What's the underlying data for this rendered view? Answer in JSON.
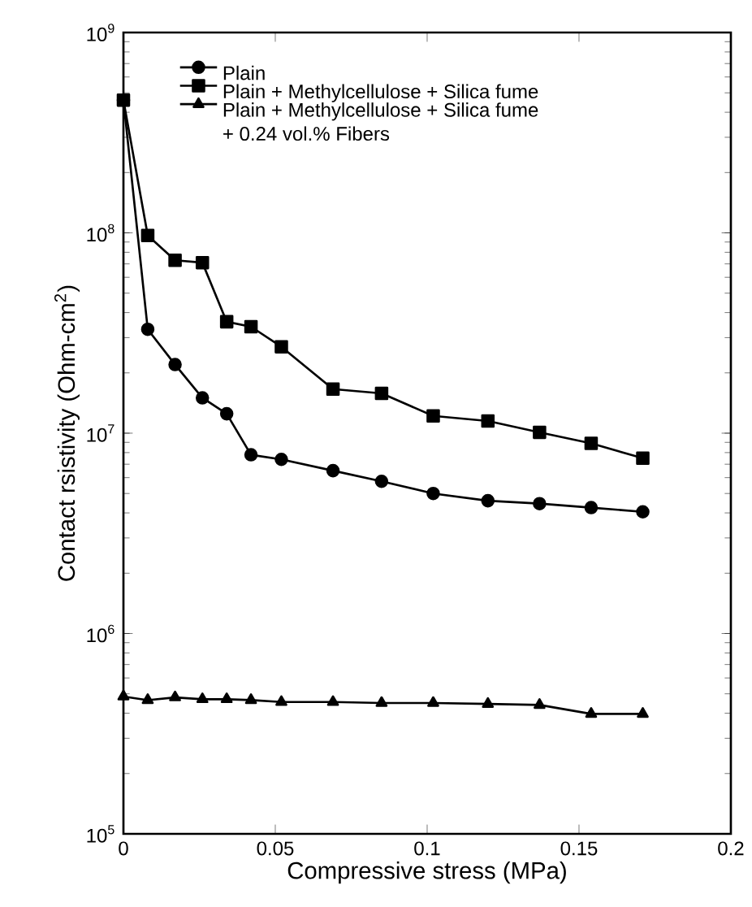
{
  "chart_data": {
    "type": "line",
    "xlabel": "Compressive stress (MPa)",
    "ylabel": "Contact rsistivity (Ohm-cm$^{2}$)",
    "log": "y",
    "xlim": [
      0,
      0.2
    ],
    "ylim": [
      100000,
      1000000000
    ],
    "xticks": [
      0,
      0.05,
      0.1,
      0.15,
      0.2
    ],
    "yticks": [
      {
        "value": 100000,
        "label": "10$^{5}$"
      },
      {
        "value": 1000000,
        "label": "10$^{6}$"
      },
      {
        "value": 10000000,
        "label": "10$^{7}$"
      },
      {
        "value": 100000000,
        "label": "10$^{8}$"
      },
      {
        "value": 1000000000,
        "label": "10$^{9}$"
      }
    ],
    "x": [
      0,
      0.008,
      0.017,
      0.026,
      0.034,
      0.042,
      0.052,
      0.069,
      0.085,
      0.102,
      0.12,
      0.137,
      0.154,
      0.171
    ],
    "legend": "top left",
    "grid": false,
    "line_style": "solid",
    "series": [
      {
        "name": "Plain",
        "color": "#000000",
        "marker": "circle",
        "values": [
          460000000,
          33000000,
          22000000,
          15000000,
          12500000,
          7800000,
          7400000,
          6500000,
          5750000,
          5000000,
          4600000,
          4450000,
          4250000,
          4050000
        ]
      },
      {
        "name": "Plain + Methylcellulose + Silica fume",
        "color": "#000000",
        "marker": "square",
        "values": [
          460000000,
          97000000,
          73000000,
          71000000,
          36000000,
          34000000,
          27000000,
          16600000,
          15800000,
          12200000,
          11500000,
          10100000,
          8900000,
          7500000
        ]
      },
      {
        "name": "Plain + Methylcellulose + Silica fume + 0.24 vol.% Fibers",
        "color": "#000000",
        "marker": "triangle",
        "values": [
          485000,
          465000,
          480000,
          470000,
          470000,
          465000,
          455000,
          455000,
          450000,
          450000,
          445000,
          440000,
          397000,
          397000
        ]
      }
    ]
  }
}
